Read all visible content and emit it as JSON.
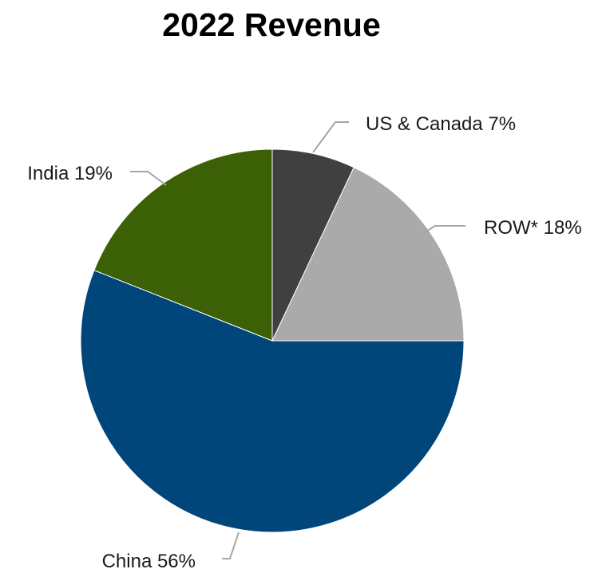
{
  "chart_data": {
    "type": "pie",
    "title": "2022 Revenue",
    "slices": [
      {
        "label": "US & Canada 7%",
        "name": "US & Canada",
        "value": 7,
        "color": "#404040"
      },
      {
        "label": "ROW* 18%",
        "name": "ROW*",
        "value": 18,
        "color": "#aaaaaa"
      },
      {
        "label": "China 56%",
        "name": "China",
        "value": 56,
        "color": "#00467b"
      },
      {
        "label": "India 19%",
        "name": "India",
        "value": 19,
        "color": "#3c6005"
      }
    ],
    "start_angle": "12 o'clock",
    "direction": "clockwise",
    "legend": "none"
  }
}
